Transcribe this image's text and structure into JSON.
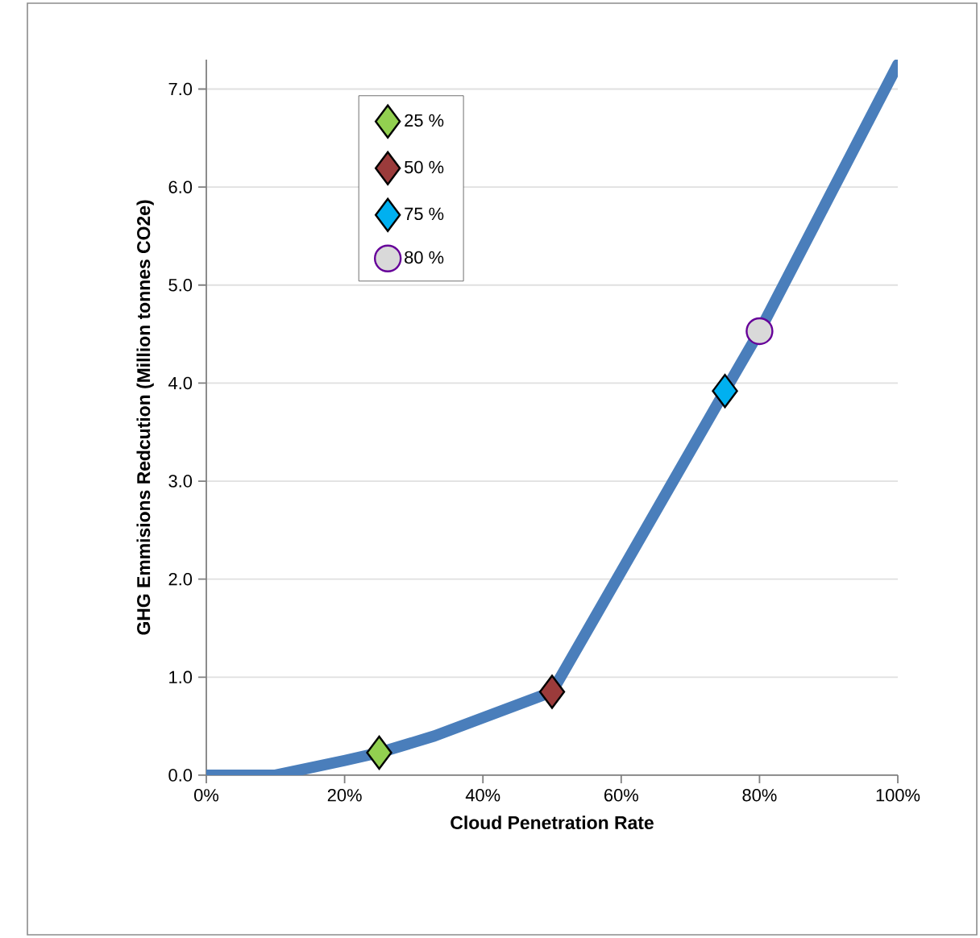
{
  "chart_data": {
    "type": "line",
    "xlabel": "Cloud Penetration Rate",
    "ylabel": "GHG Emmisions Redcution (Million tonnes  CO2e)",
    "xlim": [
      0,
      100
    ],
    "ylim": [
      0,
      7.3
    ],
    "xticks": [
      {
        "value": 0,
        "label": "0%"
      },
      {
        "value": 20,
        "label": "20%"
      },
      {
        "value": 40,
        "label": "40%"
      },
      {
        "value": 60,
        "label": "60%"
      },
      {
        "value": 80,
        "label": "80%"
      },
      {
        "value": 100,
        "label": "100%"
      }
    ],
    "yticks": [
      {
        "value": 0,
        "label": "0.0"
      },
      {
        "value": 1,
        "label": "1.0"
      },
      {
        "value": 2,
        "label": "2.0"
      },
      {
        "value": 3,
        "label": "3.0"
      },
      {
        "value": 4,
        "label": "4.0"
      },
      {
        "value": 5,
        "label": "5.0"
      },
      {
        "value": 6,
        "label": "6.0"
      },
      {
        "value": 7,
        "label": "7.0"
      }
    ],
    "grid": "y",
    "legend": "top left",
    "series": [
      {
        "color": "#4a7ebb",
        "x": [
          0,
          10,
          20,
          25,
          33,
          50,
          75,
          80,
          100
        ],
        "values": [
          0,
          0,
          0.15,
          0.23,
          0.4,
          0.85,
          3.92,
          4.53,
          7.25
        ],
        "marker": "none"
      },
      {
        "type": "scatter",
        "name": "25 %",
        "color": "#92d050",
        "x": [
          25
        ],
        "values": [
          0.23
        ],
        "marker": "diamond"
      },
      {
        "type": "scatter",
        "name": "50 %",
        "color": "#9b3b3b",
        "x": [
          50
        ],
        "values": [
          0.85
        ],
        "marker": "diamond"
      },
      {
        "type": "scatter",
        "name": "75 %",
        "color": "#00b0f0",
        "x": [
          75
        ],
        "values": [
          3.92
        ],
        "marker": "diamond"
      },
      {
        "type": "scatter",
        "name": "80 %",
        "color": "#d9d9d9",
        "x": [
          80
        ],
        "values": [
          4.53
        ],
        "marker": "circle"
      }
    ]
  }
}
